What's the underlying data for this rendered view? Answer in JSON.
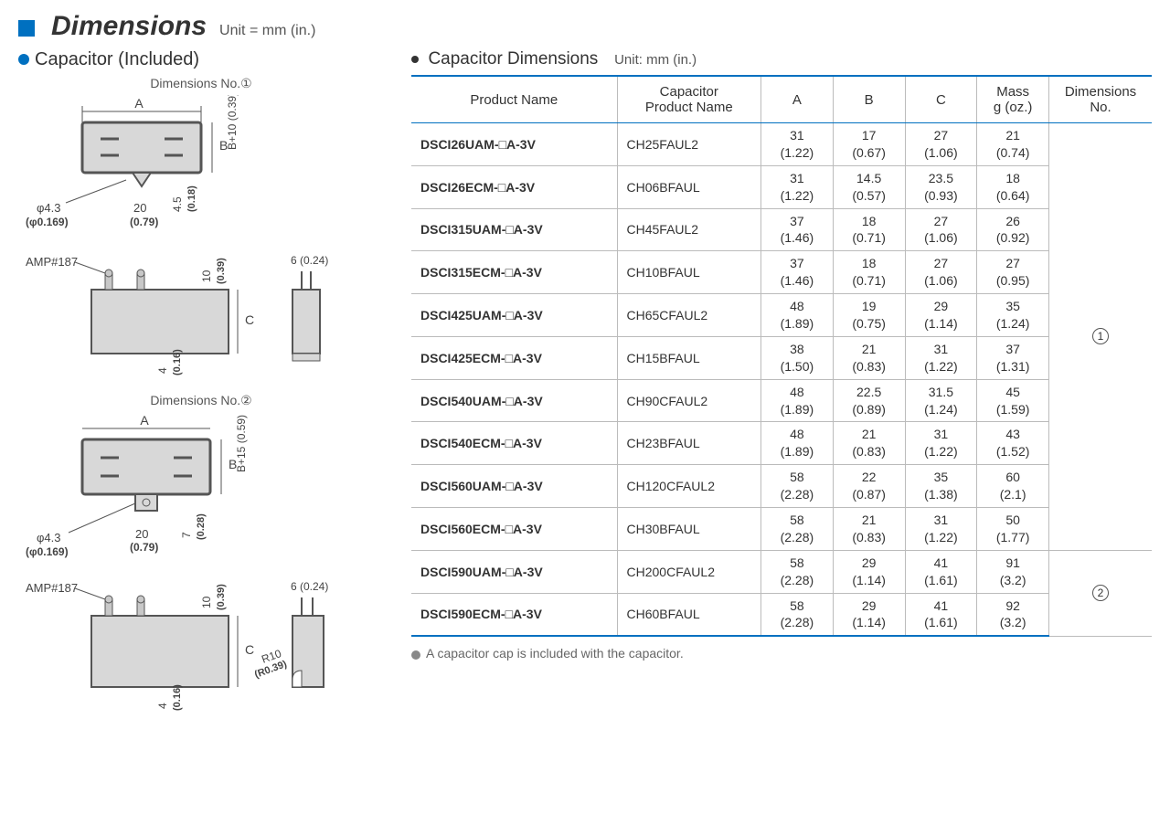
{
  "header": {
    "title": "Dimensions",
    "unit": "Unit = mm (in.)"
  },
  "left": {
    "heading": "Capacitor (Included)",
    "dim1_label": "Dimensions No.①",
    "dim2_label": "Dimensions No.②",
    "amp_label": "AMP#187",
    "labels": {
      "A": "A",
      "B": "B",
      "C": "C",
      "phi43": "φ4.3",
      "phi43_imp": "(φ0.169)",
      "d20": "20",
      "d20_imp": "(0.79)",
      "d45": "4.5",
      "d45_imp": "(0.18)",
      "bplus10": "B+10 (0.39)",
      "d10": "10",
      "d10_imp": "(0.39)",
      "d6": "6 (0.24)",
      "d4": "4",
      "d4_imp": "(0.16)",
      "bplus15": "B+15 (0.59)",
      "d7": "7",
      "d7_imp": "(0.28)",
      "r10": "R10",
      "r10_imp": "(R0.39)"
    }
  },
  "right": {
    "heading": "Capacitor Dimensions",
    "unit": "Unit: mm (in.)",
    "columns": {
      "c1": "Product Name",
      "c2": "Capacitor\nProduct Name",
      "c3": "A",
      "c4": "B",
      "c5": "C",
      "c6": "Mass\ng (oz.)",
      "c7": "Dimensions\nNo."
    },
    "rows": [
      {
        "product": "DSCI26UAM-□A-3V",
        "cap": "CH25FAUL2",
        "a": "31",
        "ai": "(1.22)",
        "b": "17",
        "bi": "(0.67)",
        "c": "27",
        "ci": "(1.06)",
        "m": "21",
        "mi": "(0.74)"
      },
      {
        "product": "DSCI26ECM-□A-3V",
        "cap": "CH06BFAUL",
        "a": "31",
        "ai": "(1.22)",
        "b": "14.5",
        "bi": "(0.57)",
        "c": "23.5",
        "ci": "(0.93)",
        "m": "18",
        "mi": "(0.64)"
      },
      {
        "product": "DSCI315UAM-□A-3V",
        "cap": "CH45FAUL2",
        "a": "37",
        "ai": "(1.46)",
        "b": "18",
        "bi": "(0.71)",
        "c": "27",
        "ci": "(1.06)",
        "m": "26",
        "mi": "(0.92)"
      },
      {
        "product": "DSCI315ECM-□A-3V",
        "cap": "CH10BFAUL",
        "a": "37",
        "ai": "(1.46)",
        "b": "18",
        "bi": "(0.71)",
        "c": "27",
        "ci": "(1.06)",
        "m": "27",
        "mi": "(0.95)"
      },
      {
        "product": "DSCI425UAM-□A-3V",
        "cap": "CH65CFAUL2",
        "a": "48",
        "ai": "(1.89)",
        "b": "19",
        "bi": "(0.75)",
        "c": "29",
        "ci": "(1.14)",
        "m": "35",
        "mi": "(1.24)"
      },
      {
        "product": "DSCI425ECM-□A-3V",
        "cap": "CH15BFAUL",
        "a": "38",
        "ai": "(1.50)",
        "b": "21",
        "bi": "(0.83)",
        "c": "31",
        "ci": "(1.22)",
        "m": "37",
        "mi": "(1.31)"
      },
      {
        "product": "DSCI540UAM-□A-3V",
        "cap": "CH90CFAUL2",
        "a": "48",
        "ai": "(1.89)",
        "b": "22.5",
        "bi": "(0.89)",
        "c": "31.5",
        "ci": "(1.24)",
        "m": "45",
        "mi": "(1.59)"
      },
      {
        "product": "DSCI540ECM-□A-3V",
        "cap": "CH23BFAUL",
        "a": "48",
        "ai": "(1.89)",
        "b": "21",
        "bi": "(0.83)",
        "c": "31",
        "ci": "(1.22)",
        "m": "43",
        "mi": "(1.52)"
      },
      {
        "product": "DSCI560UAM-□A-3V",
        "cap": "CH120CFAUL2",
        "a": "58",
        "ai": "(2.28)",
        "b": "22",
        "bi": "(0.87)",
        "c": "35",
        "ci": "(1.38)",
        "m": "60",
        "mi": "(2.1)"
      },
      {
        "product": "DSCI560ECM-□A-3V",
        "cap": "CH30BFAUL",
        "a": "58",
        "ai": "(2.28)",
        "b": "21",
        "bi": "(0.83)",
        "c": "31",
        "ci": "(1.22)",
        "m": "50",
        "mi": "(1.77)"
      },
      {
        "product": "DSCI590UAM-□A-3V",
        "cap": "CH200CFAUL2",
        "a": "58",
        "ai": "(2.28)",
        "b": "29",
        "bi": "(1.14)",
        "c": "41",
        "ci": "(1.61)",
        "m": "91",
        "mi": "(3.2)"
      },
      {
        "product": "DSCI590ECM-□A-3V",
        "cap": "CH60BFAUL",
        "a": "58",
        "ai": "(2.28)",
        "b": "29",
        "bi": "(1.14)",
        "c": "41",
        "ci": "(1.61)",
        "m": "92",
        "mi": "(3.2)"
      }
    ],
    "dimno1": "①",
    "dimno2": "②",
    "footnote": "A capacitor cap is included with the capacitor."
  },
  "style": {
    "accent": "#0070c0",
    "border": "#bbbbbb",
    "text": "#333333"
  }
}
